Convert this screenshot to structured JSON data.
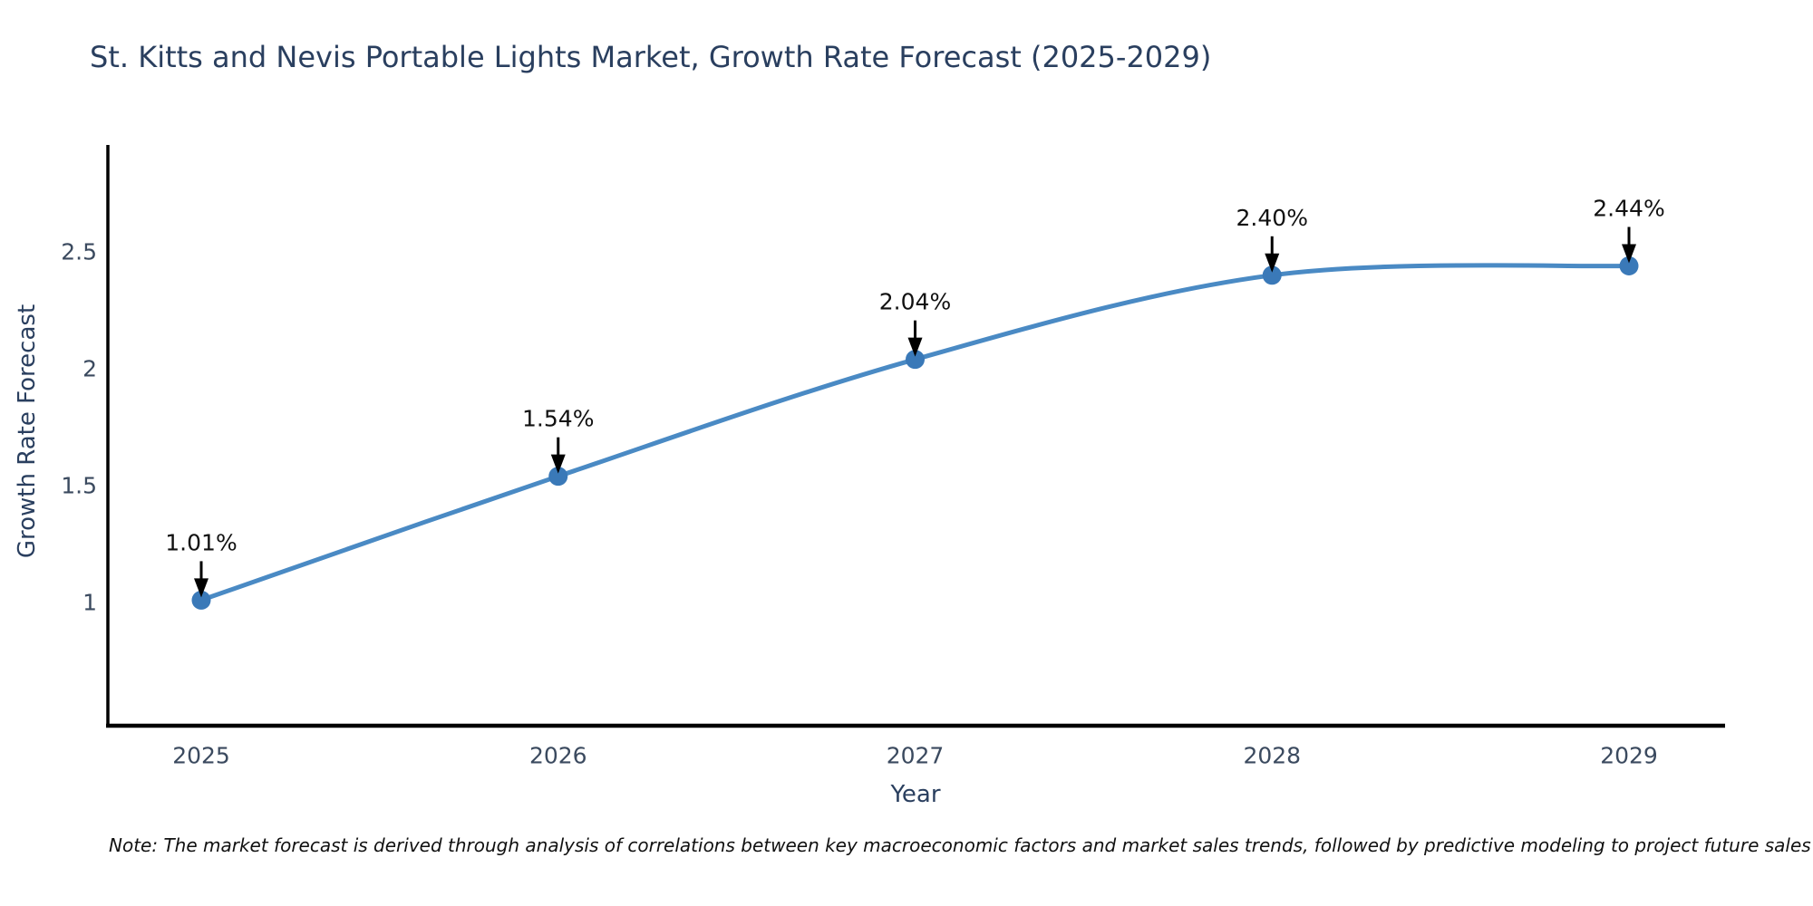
{
  "title": "St. Kitts and Nevis Portable Lights Market, Growth Rate Forecast (2025-2029)",
  "footnote": "Note: The market forecast is derived through analysis of correlations between key macroeconomic factors and market sales trends, followed by predictive modeling to project future sales",
  "chart_data": {
    "type": "line",
    "title": "St. Kitts and Nevis Portable Lights Market, Growth Rate Forecast (2025-2029)",
    "xlabel": "Year",
    "ylabel": "Growth Rate Forecast",
    "x": [
      2025,
      2026,
      2027,
      2028,
      2029
    ],
    "values": [
      1.01,
      1.54,
      2.04,
      2.4,
      2.44
    ],
    "point_labels": [
      "1.01%",
      "1.54%",
      "2.04%",
      "2.40%",
      "2.44%"
    ],
    "xticks": [
      "2025",
      "2026",
      "2027",
      "2028",
      "2029"
    ],
    "yticks": [
      1,
      1.5,
      2,
      2.5
    ],
    "ytick_labels": [
      "1",
      "1.5",
      "2",
      "2.5"
    ],
    "xlim": [
      2024.74,
      2029.27
    ],
    "ylim": [
      0.39,
      2.95
    ],
    "grid": false,
    "legend": "none",
    "line_shape": "spline",
    "colors": {
      "line": "#4a8ac4",
      "marker": "#3a79b8",
      "axis": "#000000",
      "tick_text": "#3b4a5f",
      "title_text": "#2a3f5f",
      "annotation_text": "#111111",
      "arrow": "#000000",
      "background": "#ffffff"
    }
  }
}
